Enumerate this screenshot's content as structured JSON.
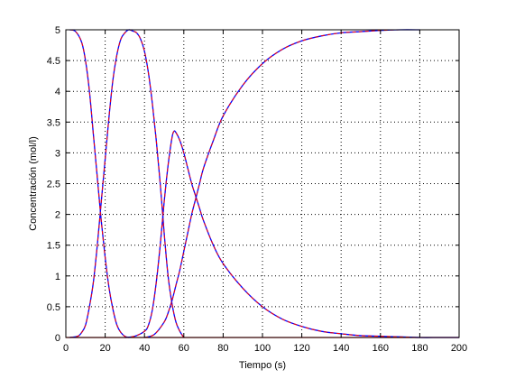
{
  "chart_data": {
    "type": "line",
    "title": "",
    "xlabel": "Tiempo (s)",
    "ylabel": "Concentración (mol/l)",
    "xlim": [
      0,
      200
    ],
    "ylim": [
      0,
      5
    ],
    "xticks": [
      0,
      20,
      40,
      60,
      80,
      100,
      120,
      140,
      160,
      180,
      200
    ],
    "yticks": [
      0,
      0.5,
      1,
      1.5,
      2,
      2.5,
      3,
      3.5,
      4,
      4.5,
      5
    ],
    "grid": true,
    "legend": "none",
    "colors": {
      "primary": "#0000ff",
      "overlay": "#ff0000",
      "axis": "#000000",
      "grid": "#000000"
    },
    "series": [
      {
        "x": [
          2,
          5,
          8,
          10,
          12,
          14,
          16,
          18,
          20,
          22,
          24,
          26,
          28,
          30,
          32
        ],
        "values": [
          5.0,
          4.97,
          4.8,
          4.5,
          4.0,
          3.3,
          2.6,
          1.9,
          1.3,
          0.8,
          0.45,
          0.2,
          0.08,
          0.02,
          0.0
        ]
      },
      {
        "x": [
          2,
          6,
          8,
          10,
          12,
          14,
          16,
          18,
          20,
          22,
          24,
          26,
          28,
          30,
          32,
          34,
          36,
          38,
          40,
          42,
          44,
          46,
          48,
          50,
          52,
          54,
          56,
          58,
          60
        ],
        "values": [
          0.0,
          0.02,
          0.08,
          0.2,
          0.5,
          0.9,
          1.5,
          2.2,
          2.9,
          3.6,
          4.2,
          4.6,
          4.85,
          4.95,
          5.0,
          4.98,
          4.95,
          4.85,
          4.65,
          4.3,
          3.8,
          3.2,
          2.5,
          1.7,
          1.0,
          0.55,
          0.25,
          0.1,
          0.0
        ]
      },
      {
        "x": [
          30,
          35,
          40,
          42,
          44,
          46,
          48,
          50,
          52,
          54,
          55,
          56,
          58,
          60,
          62,
          64,
          66,
          68,
          70,
          75,
          80,
          90,
          100,
          110,
          120,
          130,
          140,
          150,
          160,
          170,
          180,
          190,
          200
        ],
        "values": [
          0.0,
          0.02,
          0.1,
          0.2,
          0.45,
          0.9,
          1.5,
          2.2,
          2.8,
          3.25,
          3.35,
          3.33,
          3.2,
          3.0,
          2.75,
          2.5,
          2.3,
          2.1,
          1.9,
          1.5,
          1.2,
          0.8,
          0.5,
          0.3,
          0.18,
          0.1,
          0.06,
          0.03,
          0.02,
          0.01,
          0.0,
          0.0,
          0.0
        ]
      },
      {
        "x": [
          40,
          45,
          50,
          52,
          54,
          56,
          58,
          60,
          62,
          64,
          66,
          68,
          70,
          75,
          80,
          90,
          100,
          110,
          120,
          130,
          140,
          150,
          160,
          170,
          180
        ],
        "values": [
          0.0,
          0.05,
          0.25,
          0.4,
          0.6,
          0.85,
          1.1,
          1.4,
          1.7,
          2.0,
          2.25,
          2.5,
          2.75,
          3.2,
          3.6,
          4.1,
          4.45,
          4.68,
          4.82,
          4.9,
          4.95,
          4.97,
          4.99,
          5.0,
          5.0
        ]
      }
    ]
  }
}
